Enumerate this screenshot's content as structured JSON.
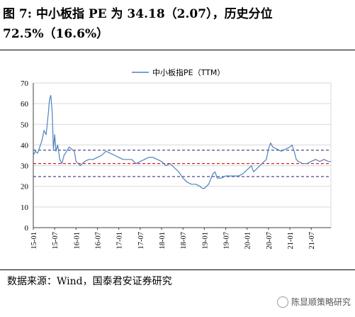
{
  "title": "图 7: 中小板指 PE 为 34.18（2.07），历史分位 72.5%（16.6%）",
  "source": "数据来源：Wind，国泰君安证券研究",
  "watermark": "陈显顺策略研究",
  "chart_data": {
    "type": "line",
    "title": "",
    "xlabel": "",
    "ylabel": "",
    "ylim": [
      0,
      70
    ],
    "yticks": [
      0,
      10,
      20,
      30,
      40,
      50,
      60,
      70
    ],
    "grid": true,
    "legend_placement": "top-center",
    "x_tick_labels": [
      "15-01",
      "15-07",
      "16-01",
      "16-07",
      "17-01",
      "17-07",
      "18-01",
      "18-07",
      "19-01",
      "19-07",
      "20-01",
      "20-07",
      "21-01",
      "21-07"
    ],
    "x_range": [
      2015.0,
      2021.96
    ],
    "series": [
      {
        "name": "中小板指PE（TTM）",
        "color": "#4f81bd",
        "points": [
          [
            2015.0,
            35
          ],
          [
            2015.05,
            37
          ],
          [
            2015.1,
            36
          ],
          [
            2015.15,
            39
          ],
          [
            2015.2,
            42
          ],
          [
            2015.25,
            47
          ],
          [
            2015.3,
            45
          ],
          [
            2015.35,
            55
          ],
          [
            2015.38,
            62
          ],
          [
            2015.41,
            64
          ],
          [
            2015.44,
            56
          ],
          [
            2015.47,
            38
          ],
          [
            2015.5,
            45
          ],
          [
            2015.53,
            37
          ],
          [
            2015.57,
            40
          ],
          [
            2015.62,
            33
          ],
          [
            2015.67,
            31
          ],
          [
            2015.72,
            35
          ],
          [
            2015.78,
            37
          ],
          [
            2015.84,
            39
          ],
          [
            2015.9,
            38
          ],
          [
            2015.96,
            37
          ],
          [
            2016.0,
            32
          ],
          [
            2016.05,
            31
          ],
          [
            2016.1,
            30
          ],
          [
            2016.2,
            32
          ],
          [
            2016.3,
            33
          ],
          [
            2016.4,
            33
          ],
          [
            2016.5,
            34
          ],
          [
            2016.6,
            35
          ],
          [
            2016.7,
            37
          ],
          [
            2016.8,
            36
          ],
          [
            2016.9,
            35
          ],
          [
            2017.0,
            34
          ],
          [
            2017.1,
            33
          ],
          [
            2017.2,
            33
          ],
          [
            2017.3,
            33
          ],
          [
            2017.4,
            31
          ],
          [
            2017.5,
            32
          ],
          [
            2017.6,
            33
          ],
          [
            2017.7,
            34
          ],
          [
            2017.8,
            34
          ],
          [
            2017.9,
            33
          ],
          [
            2018.0,
            32
          ],
          [
            2018.1,
            30
          ],
          [
            2018.2,
            31
          ],
          [
            2018.3,
            29
          ],
          [
            2018.4,
            27
          ],
          [
            2018.5,
            24
          ],
          [
            2018.6,
            22
          ],
          [
            2018.7,
            21
          ],
          [
            2018.8,
            21
          ],
          [
            2018.9,
            20
          ],
          [
            2018.95,
            19
          ],
          [
            2019.0,
            19
          ],
          [
            2019.1,
            21
          ],
          [
            2019.2,
            26
          ],
          [
            2019.25,
            27
          ],
          [
            2019.3,
            24
          ],
          [
            2019.4,
            24
          ],
          [
            2019.5,
            25
          ],
          [
            2019.6,
            25
          ],
          [
            2019.7,
            25
          ],
          [
            2019.8,
            25
          ],
          [
            2019.9,
            26
          ],
          [
            2020.0,
            28
          ],
          [
            2020.1,
            30
          ],
          [
            2020.15,
            27
          ],
          [
            2020.2,
            28
          ],
          [
            2020.3,
            30
          ],
          [
            2020.4,
            32
          ],
          [
            2020.45,
            33
          ],
          [
            2020.5,
            38
          ],
          [
            2020.55,
            41
          ],
          [
            2020.6,
            39
          ],
          [
            2020.7,
            38
          ],
          [
            2020.8,
            37
          ],
          [
            2020.9,
            38
          ],
          [
            2021.0,
            39
          ],
          [
            2021.05,
            40
          ],
          [
            2021.1,
            37
          ],
          [
            2021.15,
            33
          ],
          [
            2021.2,
            32
          ],
          [
            2021.3,
            31
          ],
          [
            2021.4,
            31
          ],
          [
            2021.5,
            32
          ],
          [
            2021.6,
            33
          ],
          [
            2021.7,
            32
          ],
          [
            2021.8,
            33
          ],
          [
            2021.9,
            32
          ],
          [
            2021.96,
            32
          ]
        ]
      }
    ],
    "reference_lines": [
      {
        "value": 37.5,
        "color": "#4a4a8a",
        "style": "dashed"
      },
      {
        "value": 31.0,
        "color": "#e0201b",
        "style": "dashed"
      },
      {
        "value": 24.7,
        "color": "#4a4a8a",
        "style": "dashed"
      }
    ]
  }
}
